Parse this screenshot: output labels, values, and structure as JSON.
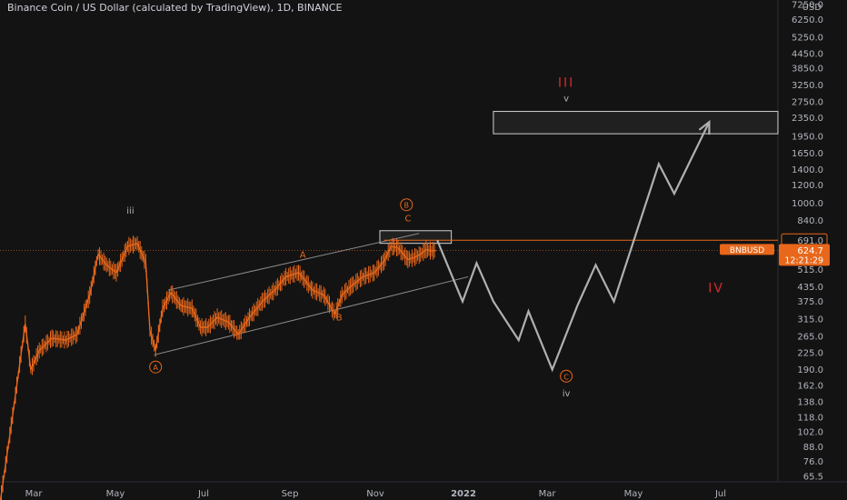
{
  "chart_title": "Binance Coin / US Dollar (calculated by TradingView), 1D, BINANCE",
  "currency_label": "USD",
  "symbol_badge": "BNBUSD",
  "colors": {
    "background": "#131313",
    "price": "#e8671b",
    "projection": "#b0b0b0",
    "label_red": "#d42a2a",
    "label_orange": "#e8671b",
    "axis_text": "#b2b5be",
    "badge_bg": "#e8671b"
  },
  "chart_data": {
    "type": "line",
    "scale": "log",
    "x_ticks": [
      "Mar",
      "May",
      "Jul",
      "Sep",
      "Nov",
      "2022",
      "Mar",
      "May",
      "Jul"
    ],
    "y_ticks": [
      7250.0,
      6250.0,
      5250.0,
      4450.0,
      3850.0,
      3250.0,
      2750.0,
      2350.0,
      1950.0,
      1650.0,
      1400.0,
      1200.0,
      1000.0,
      840.0,
      691.0,
      624.7,
      515.0,
      435.0,
      375.0,
      315.0,
      265.0,
      225.0,
      190.0,
      162.0,
      138.0,
      118.0,
      102.0,
      88.0,
      76.0,
      65.5
    ],
    "ylim": [
      62,
      7600
    ],
    "price_labels": {
      "level_line": "691.0",
      "current_price": "624.7",
      "countdown": "12:21:29"
    },
    "price_series": [
      [
        "2021-02-01",
        50
      ],
      [
        "2021-02-10",
        120
      ],
      [
        "2021-02-19",
        300
      ],
      [
        "2021-02-23",
        190
      ],
      [
        "2021-03-01",
        230
      ],
      [
        "2021-03-10",
        260
      ],
      [
        "2021-03-20",
        255
      ],
      [
        "2021-03-28",
        270
      ],
      [
        "2021-04-06",
        400
      ],
      [
        "2021-04-12",
        600
      ],
      [
        "2021-04-18",
        540
      ],
      [
        "2021-04-25",
        500
      ],
      [
        "2021-05-03",
        650
      ],
      [
        "2021-05-10",
        670
      ],
      [
        "2021-05-16",
        550
      ],
      [
        "2021-05-19",
        280
      ],
      [
        "2021-05-23",
        230
      ],
      [
        "2021-05-28",
        350
      ],
      [
        "2021-06-03",
        410
      ],
      [
        "2021-06-10",
        360
      ],
      [
        "2021-06-18",
        350
      ],
      [
        "2021-06-24",
        290
      ],
      [
        "2021-06-29",
        290
      ],
      [
        "2021-07-06",
        320
      ],
      [
        "2021-07-14",
        305
      ],
      [
        "2021-07-21",
        270
      ],
      [
        "2021-07-29",
        320
      ],
      [
        "2021-08-08",
        380
      ],
      [
        "2021-08-16",
        420
      ],
      [
        "2021-08-24",
        480
      ],
      [
        "2021-09-02",
        500
      ],
      [
        "2021-09-07",
        460
      ],
      [
        "2021-09-12",
        420
      ],
      [
        "2021-09-20",
        400
      ],
      [
        "2021-09-28",
        330
      ],
      [
        "2021-10-03",
        400
      ],
      [
        "2021-10-10",
        440
      ],
      [
        "2021-10-18",
        480
      ],
      [
        "2021-10-26",
        500
      ],
      [
        "2021-11-02",
        560
      ],
      [
        "2021-11-07",
        650
      ],
      [
        "2021-11-12",
        640
      ],
      [
        "2021-11-19",
        570
      ],
      [
        "2021-11-23",
        580
      ],
      [
        "2021-11-28",
        600
      ],
      [
        "2021-12-02",
        630
      ],
      [
        "2021-12-06",
        620
      ],
      [
        "2021-12-09",
        624.7
      ]
    ],
    "projection_path": [
      [
        "2021-12-10",
        690
      ],
      [
        "2021-12-28",
        375
      ],
      [
        "2022-01-07",
        550
      ],
      [
        "2022-01-19",
        375
      ],
      [
        "2022-02-06",
        255
      ],
      [
        "2022-02-13",
        340
      ],
      [
        "2022-03-02",
        190
      ],
      [
        "2022-03-20",
        360
      ],
      [
        "2022-04-02",
        540
      ],
      [
        "2022-04-15",
        375
      ],
      [
        "2022-05-17",
        1480
      ],
      [
        "2022-05-28",
        1100
      ],
      [
        "2022-06-22",
        2250
      ]
    ],
    "channel_lines": [
      {
        "from": [
          "2021-05-22",
          220
        ],
        "to": [
          "2022-01-01",
          480
        ]
      },
      {
        "from": [
          "2021-06-01",
          420
        ],
        "to": [
          "2021-11-27",
          740
        ]
      }
    ],
    "level_line": {
      "from": [
        "2021-11-02",
        691
      ],
      "to": [
        "2022-08-10",
        691
      ]
    },
    "zones": [
      {
        "from": [
          "2021-10-30",
          760
        ],
        "to": [
          "2021-12-20",
          670
        ]
      },
      {
        "from": [
          "2022-01-19",
          2500
        ],
        "to": [
          "2022-08-10",
          2000
        ]
      }
    ],
    "wave_labels": [
      {
        "text": "iii",
        "at": [
          "2021-05-05",
          930
        ],
        "color": "#b0b0b0"
      },
      {
        "text": "A",
        "at": [
          "2021-05-23",
          195
        ],
        "color": "#e8671b",
        "circled": true
      },
      {
        "text": "A",
        "at": [
          "2021-09-05",
          600
        ],
        "color": "#e8671b"
      },
      {
        "text": "B",
        "at": [
          "2021-10-01",
          320
        ],
        "color": "#e8671b"
      },
      {
        "text": "B",
        "at": [
          "2021-11-18",
          985
        ],
        "color": "#e8671b",
        "circled": true
      },
      {
        "text": "C",
        "at": [
          "2021-11-19",
          860
        ],
        "color": "#e8671b"
      },
      {
        "text": "III",
        "at": [
          "2022-03-12",
          3350
        ],
        "color": "#d42a2a"
      },
      {
        "text": "v",
        "at": [
          "2022-03-12",
          2850
        ],
        "color": "#b0b0b0"
      },
      {
        "text": "IV",
        "at": [
          "2022-06-27",
          430
        ],
        "color": "#d42a2a"
      },
      {
        "text": "C",
        "at": [
          "2022-03-12",
          178
        ],
        "color": "#e8671b",
        "circled": true
      },
      {
        "text": "iv",
        "at": [
          "2022-03-12",
          150
        ],
        "color": "#b0b0b0"
      }
    ],
    "x_domain": [
      "2021-02-01",
      "2022-08-10"
    ]
  }
}
